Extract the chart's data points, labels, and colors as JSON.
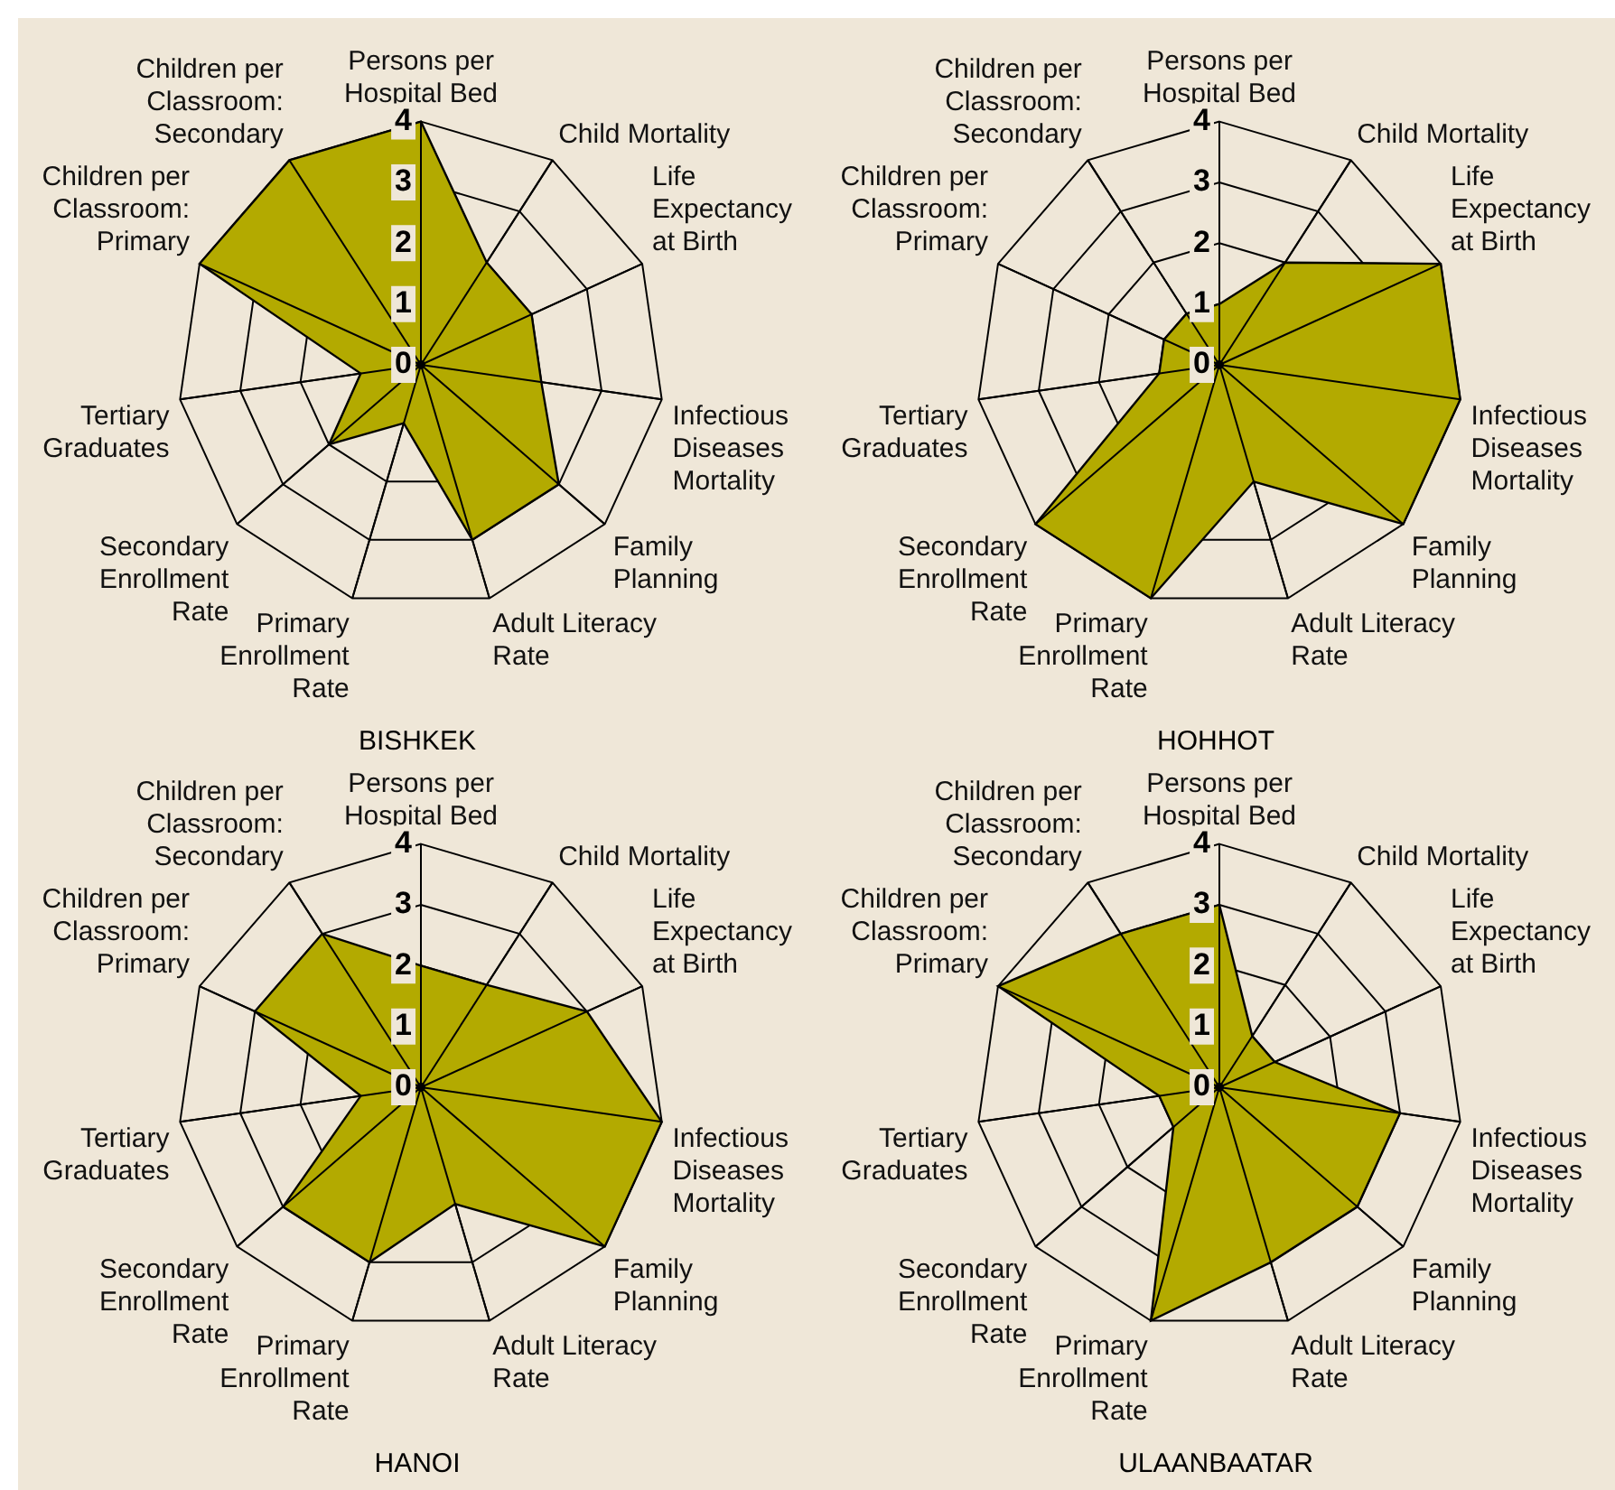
{
  "chart_data": [
    {
      "type": "radar",
      "title": "BISHKEK",
      "categories": [
        "Persons per\nHospital Bed",
        "Child Mortality",
        "Life\nExpectancy\nat Birth",
        "Infectious\nDiseases\nMortality",
        "Family\nPlanning",
        "Adult Literacy\nRate",
        "Primary\nEnrollment\nRate",
        "Secondary\nEnrollment\nRate",
        "Tertiary\nGraduates",
        "Children per\nClassroom:\nPrimary",
        "Children per\nClassroom:\nSecondary"
      ],
      "series": [
        {
          "color": "#b3aa00",
          "values": [
            4,
            2,
            2,
            2,
            3,
            3,
            1,
            2,
            1,
            4,
            4
          ]
        }
      ],
      "ylim": [
        0,
        4
      ],
      "yticks": [
        0,
        1,
        2,
        3,
        4
      ],
      "grid": true,
      "legend": false
    },
    {
      "type": "radar",
      "title": "HOHHOT",
      "categories": [
        "Persons per\nHospital Bed",
        "Child Mortality",
        "Life\nExpectancy\nat Birth",
        "Infectious\nDiseases\nMortality",
        "Family\nPlanning",
        "Adult Literacy\nRate",
        "Primary\nEnrollment\nRate",
        "Secondary\nEnrollment\nRate",
        "Tertiary\nGraduates",
        "Children per\nClassroom:\nPrimary",
        "Children per\nClassroom:\nSecondary"
      ],
      "series": [
        {
          "color": "#b3aa00",
          "values": [
            1,
            2,
            4,
            4,
            4,
            2,
            4,
            4,
            1,
            1,
            1
          ]
        }
      ],
      "ylim": [
        0,
        4
      ],
      "yticks": [
        0,
        1,
        2,
        3,
        4
      ],
      "grid": true,
      "legend": false
    },
    {
      "type": "radar",
      "title": "HANOI",
      "categories": [
        "Persons per\nHospital Bed",
        "Child Mortality",
        "Life\nExpectancy\nat Birth",
        "Infectious\nDiseases\nMortality",
        "Family\nPlanning",
        "Adult Literacy\nRate",
        "Primary\nEnrollment\nRate",
        "Secondary\nEnrollment\nRate",
        "Tertiary\nGraduates",
        "Children per\nClassroom:\nPrimary",
        "Children per\nClassroom:\nSecondary"
      ],
      "series": [
        {
          "color": "#b3aa00",
          "values": [
            2,
            2,
            3,
            4,
            4,
            2,
            3,
            3,
            1,
            3,
            3
          ]
        }
      ],
      "ylim": [
        0,
        4
      ],
      "yticks": [
        0,
        1,
        2,
        3,
        4
      ],
      "grid": true,
      "legend": false
    },
    {
      "type": "radar",
      "title": "ULAANBAATAR",
      "categories": [
        "Persons per\nHospital Bed",
        "Child Mortality",
        "Life\nExpectancy\nat Birth",
        "Infectious\nDiseases\nMortality",
        "Family\nPlanning",
        "Adult Literacy\nRate",
        "Primary\nEnrollment\nRate",
        "Secondary\nEnrollment\nRate",
        "Tertiary\nGraduates",
        "Children per\nClassroom:\nPrimary",
        "Children per\nClassroom:\nSecondary"
      ],
      "series": [
        {
          "color": "#b3aa00",
          "values": [
            3,
            1,
            1,
            3,
            3,
            3,
            4,
            1,
            1,
            4,
            3
          ]
        }
      ],
      "ylim": [
        0,
        4
      ],
      "yticks": [
        0,
        1,
        2,
        3,
        4
      ],
      "grid": true,
      "legend": false
    }
  ]
}
